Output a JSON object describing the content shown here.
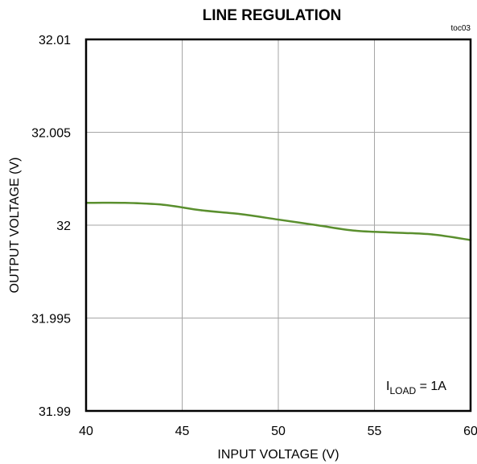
{
  "chart_data": {
    "type": "line",
    "title": "LINE REGULATION",
    "figure_tag": "toc03",
    "xlabel": "INPUT VOLTAGE (V)",
    "ylabel": "OUTPUT VOLTAGE (V)",
    "xlim": [
      40,
      60
    ],
    "ylim": [
      31.99,
      32.01
    ],
    "x_ticks": [
      "40",
      "45",
      "50",
      "55",
      "60"
    ],
    "y_ticks": [
      "31.99",
      "31.995",
      "32",
      "32.005",
      "32.01"
    ],
    "grid": true,
    "annotation": {
      "prefix": "I",
      "subscript": "LOAD",
      "suffix": " = 1A"
    },
    "series": [
      {
        "color": "#5a8f2e",
        "x": [
          40,
          42,
          44,
          46,
          48,
          50,
          52,
          54,
          56,
          58,
          60
        ],
        "y": [
          32.0012,
          32.0012,
          32.0011,
          32.0008,
          32.0006,
          32.0003,
          32.0,
          31.9997,
          31.9996,
          31.9995,
          31.9992
        ]
      }
    ]
  }
}
